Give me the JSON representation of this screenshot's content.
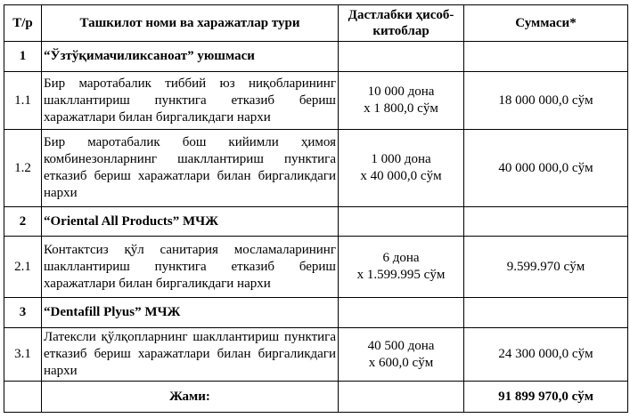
{
  "header": {
    "col_num": "Т/р",
    "col_name": "Ташкилот номи ва харажатлар тури",
    "col_calc": "Дастлабки ҳисоб-китоблар",
    "col_sum": "Суммаси*"
  },
  "groups": [
    {
      "num": "1",
      "name": "“Ўзтўқимачиликсаноат” уюшмаси",
      "items": [
        {
          "num": "1.1",
          "desc": "Бир маротабалик тиббий юз ниқобларининг шакллантириш пунктига етказиб бериш харажатлари билан биргаликдаги нархи",
          "qty": "10 000 дона",
          "price": "х 1 800,0 сўм",
          "sum": "18 000 000,0 сўм"
        },
        {
          "num": "1.2",
          "desc": "Бир маротабалик бош кийимли ҳимоя комбинезонларнинг шакллантириш пунктига етказиб бериш харажатлари билан биргаликдаги нархи",
          "qty": "1 000 дона",
          "price": "х 40 000,0 сўм",
          "sum": "40 000 000,0 сўм"
        }
      ]
    },
    {
      "num": "2",
      "name": "“Oriental All Products” МЧЖ",
      "items": [
        {
          "num": "2.1",
          "desc": "Контактсиз қўл санитария мосламаларининг шакллантириш пунктига етказиб бериш харажатлари билан биргаликдаги нархи",
          "qty": "6 дона",
          "price": "х 1.599.995 сўм",
          "sum": "9.599.970 сўм"
        }
      ]
    },
    {
      "num": "3",
      "name": "“Dentafill Plyus” МЧЖ",
      "items": [
        {
          "num": "3.1",
          "desc": "Латексли қўлқопларнинг шакллантириш пунктига етказиб бериш харажатлари билан биргаликдаги нархи",
          "qty": "40 500 дона",
          "price": "х 600,0 сўм",
          "sum": "24 300 000,0 сўм"
        }
      ]
    }
  ],
  "total": {
    "label": "Жами:",
    "sum": "91 899 970,0 сўм"
  }
}
